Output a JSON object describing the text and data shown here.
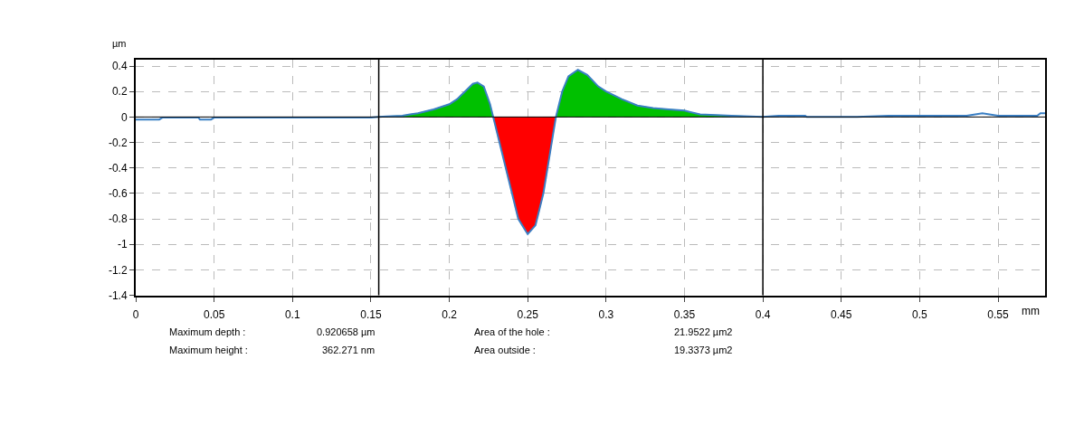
{
  "chart_data": {
    "type": "line",
    "xlabel": "mm",
    "ylabel": "µm",
    "xlim": [
      0,
      0.58
    ],
    "xticks": [
      0,
      0.05,
      0.1,
      0.15,
      0.2,
      0.25,
      0.3,
      0.35,
      0.4,
      0.45,
      0.5,
      0.55
    ],
    "ylim": [
      -1.4,
      0.45
    ],
    "yticks": [
      -1.4,
      -1.2,
      -1,
      -0.8,
      -0.6,
      -0.4,
      -0.2,
      0,
      0.2,
      0.4
    ],
    "grid": true,
    "legend": false,
    "series": [
      {
        "type": "area",
        "color": "#00c000",
        "x": [
          0.155,
          0.16,
          0.17,
          0.175,
          0.18,
          0.19,
          0.2,
          0.205,
          0.21,
          0.215,
          0.218,
          0.222,
          0.226,
          0.228,
          0.25,
          0.268,
          0.272,
          0.276,
          0.282,
          0.288,
          0.295,
          0.3,
          0.31,
          0.32,
          0.33,
          0.34,
          0.35,
          0.36,
          0.38,
          0.4
        ],
        "values": [
          0,
          0.005,
          0.01,
          0.02,
          0.03,
          0.06,
          0.1,
          0.14,
          0.2,
          0.26,
          0.27,
          0.24,
          0.1,
          0,
          null,
          0,
          0.2,
          0.32,
          0.37,
          0.33,
          0.24,
          0.2,
          0.14,
          0.09,
          0.07,
          0.06,
          0.05,
          0.02,
          0.01,
          0
        ]
      },
      {
        "type": "area",
        "color": "#ff0000",
        "x": [
          0.228,
          0.232,
          0.238,
          0.244,
          0.25,
          0.255,
          0.26,
          0.264,
          0.268
        ],
        "values": [
          0,
          -0.2,
          -0.5,
          -0.8,
          -0.92,
          -0.85,
          -0.6,
          -0.3,
          0
        ]
      },
      {
        "color": "#3a7fc4",
        "x": [
          0,
          0.015,
          0.017,
          0.04,
          0.041,
          0.048,
          0.05,
          0.15,
          0.155,
          0.16,
          0.17,
          0.175,
          0.18,
          0.19,
          0.2,
          0.205,
          0.21,
          0.215,
          0.218,
          0.222,
          0.226,
          0.228,
          0.232,
          0.238,
          0.244,
          0.25,
          0.255,
          0.26,
          0.264,
          0.268,
          0.272,
          0.276,
          0.282,
          0.288,
          0.295,
          0.3,
          0.31,
          0.32,
          0.33,
          0.34,
          0.35,
          0.36,
          0.38,
          0.4,
          0.41,
          0.427,
          0.428,
          0.46,
          0.48,
          0.53,
          0.54,
          0.55,
          0.575,
          0.577,
          0.58
        ],
        "values": [
          -0.02,
          -0.02,
          -0.005,
          -0.005,
          -0.02,
          -0.02,
          -0.005,
          -0.005,
          0,
          0.005,
          0.01,
          0.02,
          0.03,
          0.06,
          0.1,
          0.14,
          0.2,
          0.26,
          0.27,
          0.24,
          0.1,
          0,
          -0.2,
          -0.5,
          -0.8,
          -0.92,
          -0.85,
          -0.6,
          -0.3,
          0,
          0.2,
          0.32,
          0.37,
          0.33,
          0.24,
          0.2,
          0.14,
          0.09,
          0.07,
          0.06,
          0.05,
          0.02,
          0.01,
          0,
          0.01,
          0.01,
          0,
          0,
          0.01,
          0.01,
          0.03,
          0.01,
          0.01,
          0.03,
          0.03
        ]
      }
    ],
    "ref_lines": [
      {
        "axis": "x",
        "value": 0.155,
        "color": "#000000"
      },
      {
        "axis": "x",
        "value": 0.4,
        "color": "#000000"
      },
      {
        "axis": "y",
        "value": 0,
        "color": "#000000"
      }
    ],
    "annotations": [
      "Maximum depth :",
      "0.920658 µm",
      "Area of the hole :",
      "21.9522 µm2",
      "Maximum height :",
      "362.271 nm",
      "Area outside :",
      "19.3373 µm2"
    ]
  }
}
